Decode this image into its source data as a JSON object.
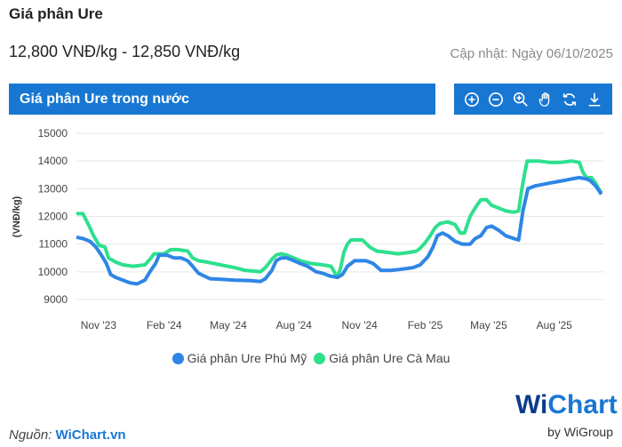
{
  "header": {
    "title": "Giá phân Ure",
    "price_range": "12,800 VNĐ/kg - 12,850 VNĐ/kg",
    "updated": "Cập nhật: Ngày 06/10/2025"
  },
  "chart_header": {
    "title": "Giá phân Ure trong nước"
  },
  "toolbar": {
    "icons": [
      "zoom-in-icon",
      "zoom-out-icon",
      "magnify-icon",
      "pan-hand-icon",
      "reset-icon",
      "download-icon"
    ]
  },
  "colors": {
    "accent": "#1877d2",
    "series_phu_my": "#2e86e6",
    "series_ca_mau": "#2ee08e",
    "grid": "#e6e6e6"
  },
  "source": {
    "label": "Nguồn:",
    "link": "WiChart.vn"
  },
  "logo": {
    "brand_w": "Wi",
    "brand_rest": "Chart",
    "by": "by WiGroup"
  },
  "chart_data": {
    "type": "line",
    "title": "Giá phân Ure trong nước",
    "xlabel": "",
    "ylabel": "(VNĐ/kg)",
    "ylim": [
      9000,
      15000
    ],
    "yticks": [
      9000,
      10000,
      11000,
      12000,
      13000,
      14000,
      15000
    ],
    "xlim": [
      "2023-10-01",
      "2025-10-10"
    ],
    "xticks": [
      {
        "label": "Nov '23",
        "date": "2023-11-01"
      },
      {
        "label": "Feb '24",
        "date": "2024-02-01"
      },
      {
        "label": "May '24",
        "date": "2024-05-01"
      },
      {
        "label": "Aug '24",
        "date": "2024-08-01"
      },
      {
        "label": "Nov '24",
        "date": "2024-11-01"
      },
      {
        "label": "Feb '25",
        "date": "2025-02-01"
      },
      {
        "label": "May '25",
        "date": "2025-05-01"
      },
      {
        "label": "Aug '25",
        "date": "2025-08-01"
      }
    ],
    "grid": true,
    "legend": "bottom-center",
    "series": [
      {
        "name": "Giá phân Ure Phú Mỹ",
        "color": "#2e86e6",
        "points": [
          [
            "2023-10-01",
            11250
          ],
          [
            "2023-10-10",
            11200
          ],
          [
            "2023-10-20",
            11100
          ],
          [
            "2023-10-28",
            10900
          ],
          [
            "2023-11-05",
            10600
          ],
          [
            "2023-11-12",
            10300
          ],
          [
            "2023-11-18",
            9900
          ],
          [
            "2023-11-25",
            9800
          ],
          [
            "2023-12-05",
            9700
          ],
          [
            "2023-12-15",
            9600
          ],
          [
            "2023-12-25",
            9560
          ],
          [
            "2024-01-05",
            9700
          ],
          [
            "2024-01-12",
            10000
          ],
          [
            "2024-01-20",
            10300
          ],
          [
            "2024-01-25",
            10600
          ],
          [
            "2024-02-05",
            10600
          ],
          [
            "2024-02-15",
            10500
          ],
          [
            "2024-02-25",
            10500
          ],
          [
            "2024-03-05",
            10400
          ],
          [
            "2024-03-12",
            10200
          ],
          [
            "2024-03-20",
            9950
          ],
          [
            "2024-03-28",
            9850
          ],
          [
            "2024-04-05",
            9750
          ],
          [
            "2024-04-20",
            9730
          ],
          [
            "2024-05-10",
            9700
          ],
          [
            "2024-06-01",
            9680
          ],
          [
            "2024-06-15",
            9650
          ],
          [
            "2024-06-22",
            9750
          ],
          [
            "2024-07-01",
            10050
          ],
          [
            "2024-07-07",
            10400
          ],
          [
            "2024-07-14",
            10500
          ],
          [
            "2024-07-22",
            10500
          ],
          [
            "2024-08-01",
            10400
          ],
          [
            "2024-08-10",
            10300
          ],
          [
            "2024-08-20",
            10200
          ],
          [
            "2024-09-01",
            10000
          ],
          [
            "2024-09-10",
            9950
          ],
          [
            "2024-09-20",
            9850
          ],
          [
            "2024-10-01",
            9800
          ],
          [
            "2024-10-08",
            9900
          ],
          [
            "2024-10-15",
            10200
          ],
          [
            "2024-10-25",
            10400
          ],
          [
            "2024-11-10",
            10400
          ],
          [
            "2024-11-20",
            10300
          ],
          [
            "2024-12-01",
            10050
          ],
          [
            "2024-12-15",
            10050
          ],
          [
            "2025-01-01",
            10100
          ],
          [
            "2025-01-15",
            10150
          ],
          [
            "2025-01-25",
            10250
          ],
          [
            "2025-02-05",
            10550
          ],
          [
            "2025-02-12",
            10900
          ],
          [
            "2025-02-18",
            11300
          ],
          [
            "2025-02-25",
            11400
          ],
          [
            "2025-03-05",
            11300
          ],
          [
            "2025-03-15",
            11100
          ],
          [
            "2025-03-25",
            11000
          ],
          [
            "2025-04-05",
            11000
          ],
          [
            "2025-04-12",
            11200
          ],
          [
            "2025-04-20",
            11300
          ],
          [
            "2025-04-28",
            11600
          ],
          [
            "2025-05-05",
            11650
          ],
          [
            "2025-05-15",
            11500
          ],
          [
            "2025-05-25",
            11300
          ],
          [
            "2025-06-05",
            11200
          ],
          [
            "2025-06-12",
            11150
          ],
          [
            "2025-06-18",
            12200
          ],
          [
            "2025-06-25",
            13000
          ],
          [
            "2025-07-05",
            13100
          ],
          [
            "2025-07-15",
            13150
          ],
          [
            "2025-07-25",
            13200
          ],
          [
            "2025-08-05",
            13250
          ],
          [
            "2025-08-15",
            13300
          ],
          [
            "2025-08-25",
            13350
          ],
          [
            "2025-09-05",
            13400
          ],
          [
            "2025-09-15",
            13350
          ],
          [
            "2025-09-20",
            13300
          ],
          [
            "2025-09-28",
            13100
          ],
          [
            "2025-10-02",
            12950
          ],
          [
            "2025-10-06",
            12800
          ]
        ]
      },
      {
        "name": "Giá phân Ure Cà Mau",
        "color": "#2ee08e",
        "points": [
          [
            "2023-10-01",
            12100
          ],
          [
            "2023-10-10",
            12100
          ],
          [
            "2023-10-18",
            11700
          ],
          [
            "2023-10-25",
            11300
          ],
          [
            "2023-11-02",
            10950
          ],
          [
            "2023-11-10",
            10900
          ],
          [
            "2023-11-15",
            10500
          ],
          [
            "2023-11-25",
            10350
          ],
          [
            "2023-12-05",
            10250
          ],
          [
            "2023-12-20",
            10200
          ],
          [
            "2024-01-05",
            10250
          ],
          [
            "2024-01-12",
            10450
          ],
          [
            "2024-01-18",
            10650
          ],
          [
            "2024-02-01",
            10650
          ],
          [
            "2024-02-10",
            10800
          ],
          [
            "2024-02-20",
            10800
          ],
          [
            "2024-03-05",
            10750
          ],
          [
            "2024-03-12",
            10500
          ],
          [
            "2024-03-20",
            10400
          ],
          [
            "2024-04-01",
            10350
          ],
          [
            "2024-04-20",
            10250
          ],
          [
            "2024-05-10",
            10150
          ],
          [
            "2024-05-25",
            10050
          ],
          [
            "2024-06-15",
            10000
          ],
          [
            "2024-06-22",
            10150
          ],
          [
            "2024-07-01",
            10450
          ],
          [
            "2024-07-07",
            10600
          ],
          [
            "2024-07-14",
            10650
          ],
          [
            "2024-07-22",
            10600
          ],
          [
            "2024-08-01",
            10500
          ],
          [
            "2024-08-10",
            10400
          ],
          [
            "2024-08-25",
            10300
          ],
          [
            "2024-09-10",
            10250
          ],
          [
            "2024-09-22",
            10200
          ],
          [
            "2024-10-01",
            9800
          ],
          [
            "2024-10-05",
            10100
          ],
          [
            "2024-10-10",
            10700
          ],
          [
            "2024-10-15",
            11000
          ],
          [
            "2024-10-20",
            11150
          ],
          [
            "2024-11-05",
            11150
          ],
          [
            "2024-11-15",
            10900
          ],
          [
            "2024-11-25",
            10750
          ],
          [
            "2024-12-10",
            10700
          ],
          [
            "2024-12-25",
            10650
          ],
          [
            "2025-01-10",
            10700
          ],
          [
            "2025-01-20",
            10750
          ],
          [
            "2025-01-25",
            10850
          ],
          [
            "2025-02-01",
            11050
          ],
          [
            "2025-02-08",
            11300
          ],
          [
            "2025-02-15",
            11600
          ],
          [
            "2025-02-22",
            11750
          ],
          [
            "2025-03-05",
            11800
          ],
          [
            "2025-03-15",
            11700
          ],
          [
            "2025-03-22",
            11400
          ],
          [
            "2025-03-28",
            11400
          ],
          [
            "2025-04-05",
            12000
          ],
          [
            "2025-04-12",
            12300
          ],
          [
            "2025-04-20",
            12600
          ],
          [
            "2025-04-28",
            12600
          ],
          [
            "2025-05-05",
            12400
          ],
          [
            "2025-05-15",
            12300
          ],
          [
            "2025-05-25",
            12200
          ],
          [
            "2025-06-05",
            12150
          ],
          [
            "2025-06-12",
            12200
          ],
          [
            "2025-06-16",
            12900
          ],
          [
            "2025-06-20",
            13500
          ],
          [
            "2025-06-24",
            14000
          ],
          [
            "2025-07-10",
            14000
          ],
          [
            "2025-07-25",
            13950
          ],
          [
            "2025-08-10",
            13950
          ],
          [
            "2025-08-25",
            14000
          ],
          [
            "2025-09-05",
            13950
          ],
          [
            "2025-09-10",
            13600
          ],
          [
            "2025-09-15",
            13400
          ],
          [
            "2025-09-22",
            13400
          ],
          [
            "2025-09-28",
            13200
          ],
          [
            "2025-10-02",
            13000
          ],
          [
            "2025-10-06",
            12850
          ]
        ]
      }
    ]
  }
}
